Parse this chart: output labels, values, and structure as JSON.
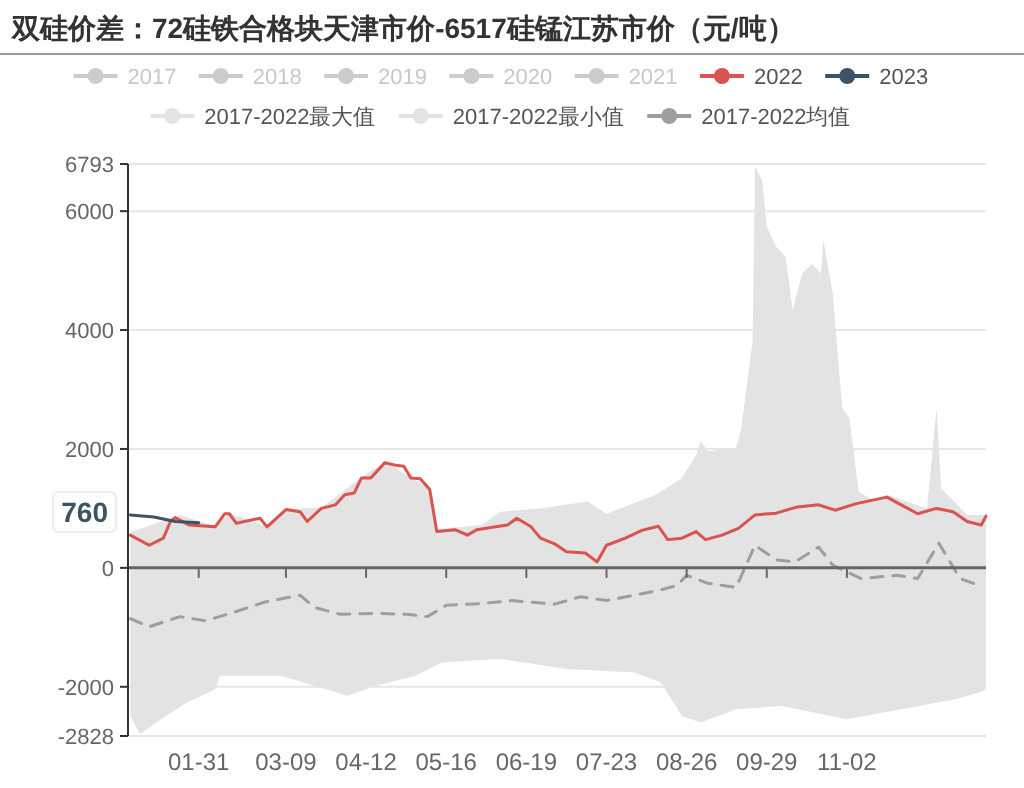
{
  "chart_data": {
    "type": "line",
    "title": "双硅价差：72硅铁合格块天津市价-6517硅锰江苏市价（元/吨）",
    "xlim": [
      "--01-01",
      "--12-31"
    ],
    "xticks": [
      {
        "value": "--01-31",
        "label": "01-31"
      },
      {
        "value": "--03-09",
        "label": "03-09"
      },
      {
        "value": "--04-12",
        "label": "04-12"
      },
      {
        "value": "--05-16",
        "label": "05-16"
      },
      {
        "value": "--06-19",
        "label": "06-19"
      },
      {
        "value": "--07-23",
        "label": "07-23"
      },
      {
        "value": "--08-26",
        "label": "08-26"
      },
      {
        "value": "--09-29",
        "label": "09-29"
      },
      {
        "value": "--11-02",
        "label": "11-02"
      }
    ],
    "ylim": [
      -2828,
      6793
    ],
    "yticks": [
      -2828,
      -2000,
      0,
      2000,
      4000,
      6000,
      6793
    ],
    "grid": "y",
    "legend": "top",
    "annotations": [
      "760"
    ],
    "series": [
      {
        "name": "2017",
        "color": "#cccccc"
      },
      {
        "name": "2018",
        "color": "#cccccc"
      },
      {
        "name": "2019",
        "color": "#cccccc"
      },
      {
        "name": "2020",
        "color": "#cccccc"
      },
      {
        "name": "2021",
        "color": "#cccccc"
      },
      {
        "name": "2022",
        "color": "#d9534f",
        "x": [
          "--01-02",
          "--01-10",
          "--01-16",
          "--01-19",
          "--01-21",
          "--01-27",
          "--02-07",
          "--02-11",
          "--02-13",
          "--02-16",
          "--02-26",
          "--03-01",
          "--03-09",
          "--03-15",
          "--03-18",
          "--03-24",
          "--03-30",
          "--04-03",
          "--04-07",
          "--04-10",
          "--04-14",
          "--04-20",
          "--04-24",
          "--04-28",
          "--05-01",
          "--05-05",
          "--05-09",
          "--05-12",
          "--05-20",
          "--05-25",
          "--05-29",
          "--06-06",
          "--06-11",
          "--06-15",
          "--06-21",
          "--06-25",
          "--07-01",
          "--07-06",
          "--07-14",
          "--07-19",
          "--07-23",
          "--07-31",
          "--08-07",
          "--08-14",
          "--08-18",
          "--08-24",
          "--08-30",
          "--09-03",
          "--09-10",
          "--09-17",
          "--09-24",
          "--10-03",
          "--10-12",
          "--10-21",
          "--10-28",
          "--11-06",
          "--11-19",
          "--11-25",
          "--12-02",
          "--12-10",
          "--12-17",
          "--12-23",
          "--12-29",
          "--12-31"
        ],
        "values": [
          550,
          380,
          500,
          780,
          845,
          720,
          690,
          910,
          910,
          750,
          835,
          690,
          980,
          945,
          780,
          1000,
          1060,
          1230,
          1260,
          1510,
          1510,
          1770,
          1730,
          1710,
          1510,
          1500,
          1320,
          610,
          640,
          550,
          640,
          690,
          720,
          835,
          690,
          500,
          405,
          270,
          250,
          100,
          380,
          500,
          630,
          700,
          475,
          500,
          610,
          475,
          550,
          665,
          890,
          920,
          1025,
          1060,
          970,
          1080,
          1190,
          1060,
          910,
          1000,
          945,
          780,
          720,
          870
        ]
      },
      {
        "name": "2023",
        "color": "#3d5366",
        "x": [
          "--01-02",
          "--01-12",
          "--01-21",
          "--01-31"
        ],
        "values": [
          890,
          855,
          780,
          760
        ]
      },
      {
        "name": "2017-2022最大值",
        "type": "area",
        "color": "#e3e3e3",
        "x": [
          "--01-02",
          "--01-23",
          "--02-07",
          "--02-13",
          "--03-01",
          "--03-09",
          "--03-24",
          "--04-10",
          "--04-20",
          "--05-01",
          "--05-09",
          "--05-12",
          "--05-31",
          "--06-08",
          "--06-25",
          "--07-15",
          "--07-23",
          "--08-13",
          "--08-24",
          "--08-30",
          "--09-01",
          "--09-04",
          "--09-16",
          "--09-18",
          "--09-23",
          "--09-24",
          "--09-27",
          "--09-29",
          "--10-03",
          "--10-07",
          "--10-10",
          "--10-14",
          "--10-18",
          "--10-22",
          "--10-23",
          "--10-27",
          "--10-31",
          "--11-03",
          "--11-07",
          "--11-14",
          "--11-19",
          "--12-06",
          "--12-10",
          "--12-12",
          "--12-23",
          "--12-31"
        ],
        "values": [
          600,
          890,
          700,
          920,
          700,
          990,
          1010,
          1520,
          1790,
          1520,
          1330,
          650,
          720,
          945,
          1000,
          1115,
          910,
          1230,
          1510,
          1900,
          2130,
          1960,
          2020,
          2300,
          3820,
          6750,
          6520,
          5740,
          5400,
          5230,
          4330,
          4950,
          5110,
          4950,
          5510,
          4610,
          2690,
          2520,
          1280,
          1115,
          1230,
          1000,
          2690,
          1340,
          890,
          890
        ]
      },
      {
        "name": "2017-2022最小值",
        "type": "area",
        "color": "#e3e3e3",
        "x": [
          "--01-02",
          "--01-06",
          "--01-15",
          "--01-26",
          "--02-07",
          "--02-09",
          "--03-07",
          "--04-04",
          "--04-16",
          "--05-03",
          "--05-14",
          "--06-08",
          "--07-06",
          "--08-04",
          "--08-15",
          "--08-24",
          "--09-01",
          "--09-16",
          "--10-05",
          "--11-02",
          "--11-25",
          "--12-18",
          "--12-28",
          "--12-31"
        ],
        "values": [
          -2490,
          -2800,
          -2545,
          -2265,
          -2040,
          -1815,
          -1815,
          -2150,
          -1985,
          -1815,
          -1590,
          -1530,
          -1700,
          -1760,
          -1925,
          -2490,
          -2600,
          -2380,
          -2320,
          -2545,
          -2380,
          -2210,
          -2095,
          -2040
        ]
      },
      {
        "name": "2017-2022均值",
        "color": "#9e9e9e",
        "line_style": "dashed",
        "x": [
          "--01-02",
          "--01-10",
          "--01-23",
          "--02-03",
          "--02-15",
          "--02-28",
          "--03-07",
          "--03-15",
          "--03-21",
          "--04-01",
          "--04-16",
          "--04-29",
          "--05-08",
          "--05-16",
          "--05-31",
          "--06-13",
          "--07-01",
          "--07-12",
          "--07-23",
          "--08-04",
          "--08-15",
          "--08-22",
          "--08-26",
          "--09-04",
          "--09-16",
          "--09-24",
          "--10-03",
          "--10-11",
          "--10-21",
          "--10-27",
          "--11-08",
          "--11-23",
          "--12-02",
          "--12-11",
          "--12-20",
          "--12-28"
        ],
        "values": [
          -855,
          -990,
          -820,
          -890,
          -745,
          -575,
          -520,
          -460,
          -665,
          -780,
          -765,
          -780,
          -820,
          -630,
          -600,
          -550,
          -610,
          -485,
          -550,
          -460,
          -370,
          -295,
          -125,
          -260,
          -330,
          380,
          135,
          100,
          350,
          45,
          -180,
          -125,
          -180,
          415,
          -180,
          -295
        ]
      }
    ]
  }
}
